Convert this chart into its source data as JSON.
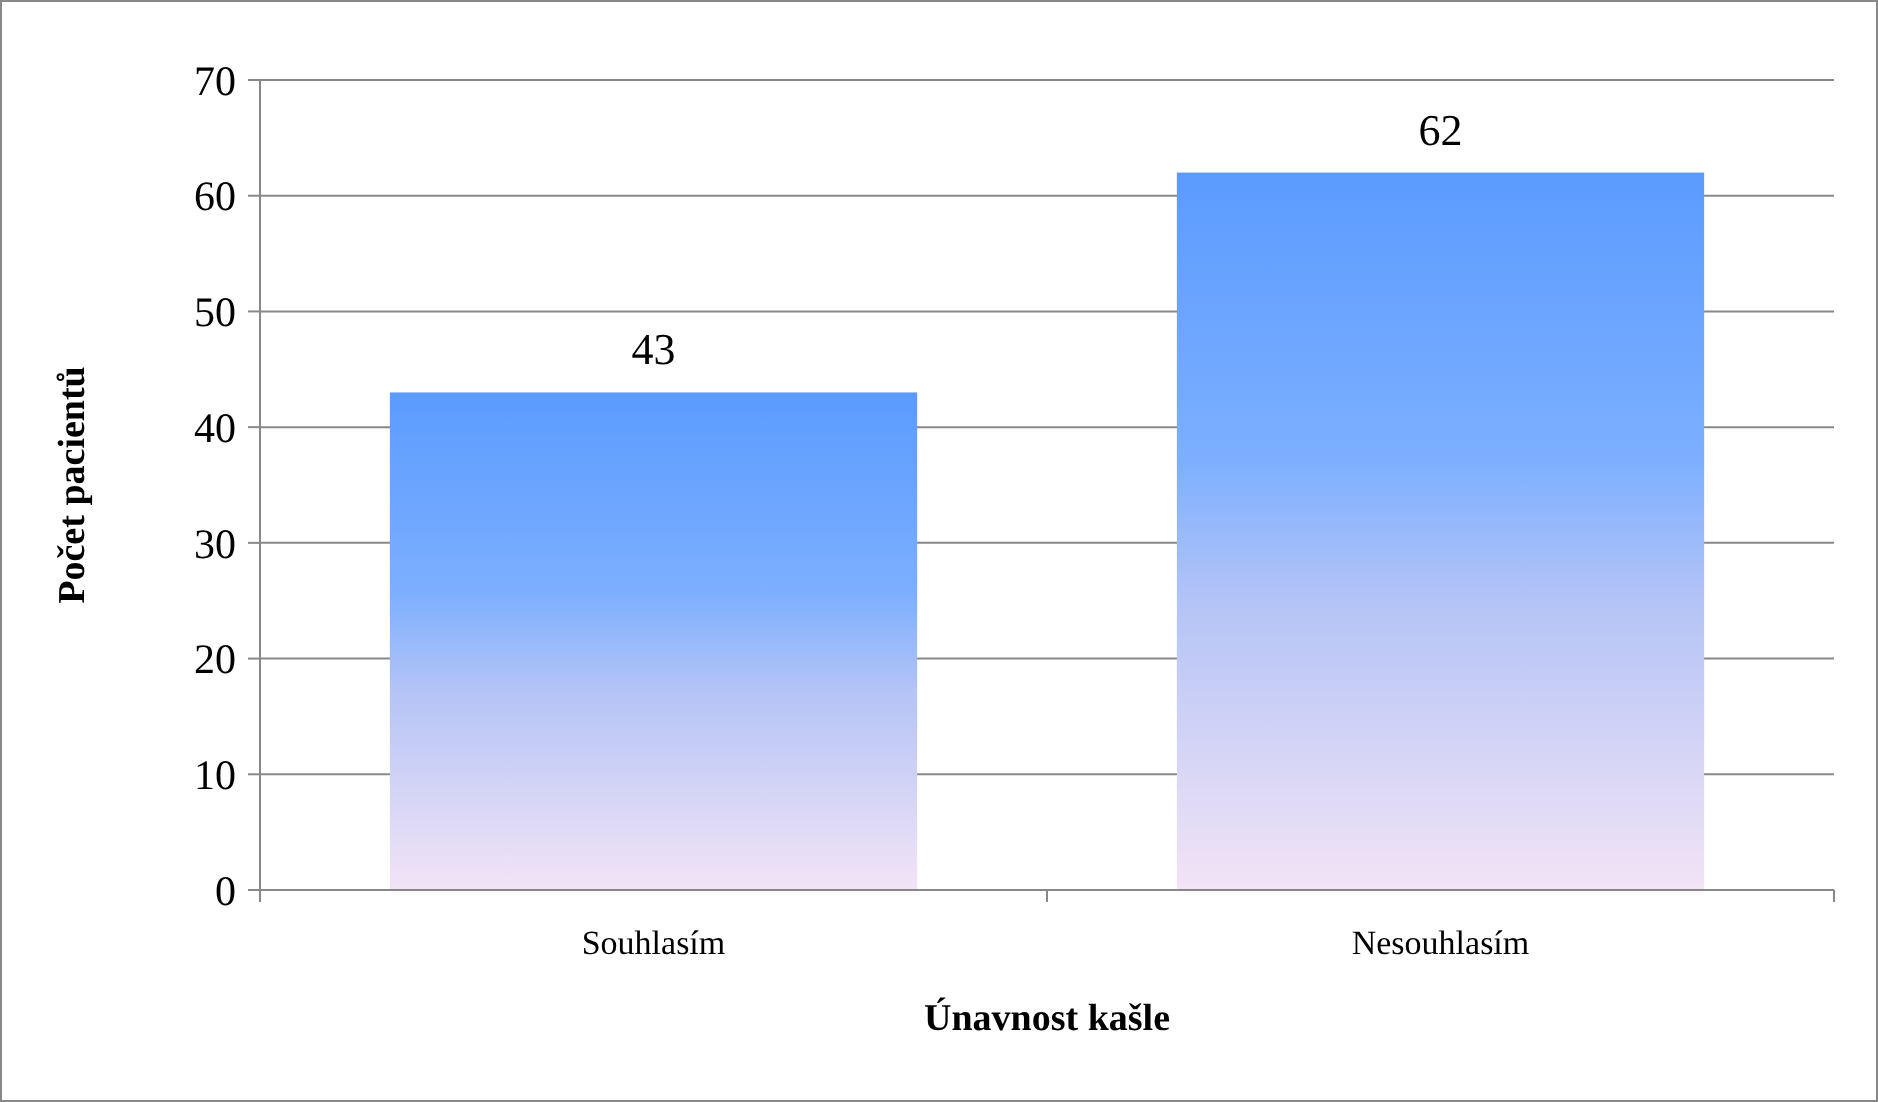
{
  "chart_data": {
    "type": "bar",
    "xlabel": "Únavnost kašle",
    "ylabel": "Počet pacientů",
    "categories": [
      "Souhlasím",
      "Nesouhlasím"
    ],
    "values": [
      43,
      62
    ],
    "color": "#5b9bff",
    "ylim": [
      0,
      70
    ],
    "yticks": [
      0,
      10,
      20,
      30,
      40,
      50,
      60,
      70
    ],
    "grid": "y",
    "data_labels": true
  }
}
